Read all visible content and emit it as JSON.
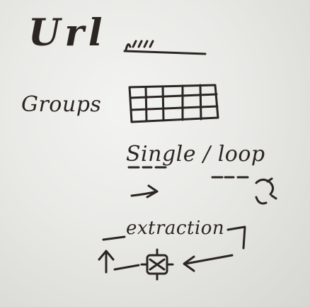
{
  "board": {
    "heading": "Url",
    "row_groups": "Groups",
    "row_mode": "Single / loop",
    "row_step": "extraction"
  }
}
